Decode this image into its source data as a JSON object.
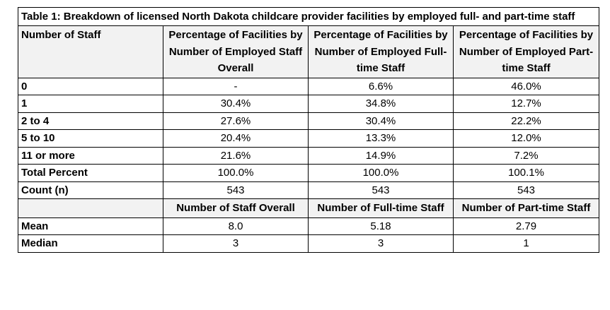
{
  "table": {
    "caption": "Table 1: Breakdown of licensed North Dakota childcare provider facilities by employed full- and part-time staff",
    "header": [
      "Number of Staff",
      "Percentage of Facilities by Number of Employed Staff Overall",
      "Percentage of Facilities by Number of Employed Full-time Staff",
      "Percentage of Facilities by Number of Employed Part-time Staff"
    ],
    "rows": [
      {
        "label": "0",
        "values": [
          "-",
          "6.6%",
          "46.0%"
        ]
      },
      {
        "label": "1",
        "values": [
          "30.4%",
          "34.8%",
          "12.7%"
        ]
      },
      {
        "label": "2 to 4",
        "values": [
          "27.6%",
          "30.4%",
          "22.2%"
        ]
      },
      {
        "label": "5 to 10",
        "values": [
          "20.4%",
          "13.3%",
          "12.0%"
        ]
      },
      {
        "label": "11 or more",
        "values": [
          "21.6%",
          "14.9%",
          "7.2%"
        ]
      },
      {
        "label": "Total Percent",
        "values": [
          "100.0%",
          "100.0%",
          "100.1%"
        ]
      },
      {
        "label": "Count (n)",
        "values": [
          "543",
          "543",
          "543"
        ]
      }
    ],
    "subheader": [
      "",
      "Number of Staff Overall",
      "Number of Full-time Staff",
      "Number of Part-time Staff"
    ],
    "stat_rows": [
      {
        "label": "Mean",
        "values": [
          "8.0",
          "5.18",
          "2.79"
        ]
      },
      {
        "label": "Median",
        "values": [
          "3",
          "3",
          "1"
        ]
      }
    ]
  }
}
